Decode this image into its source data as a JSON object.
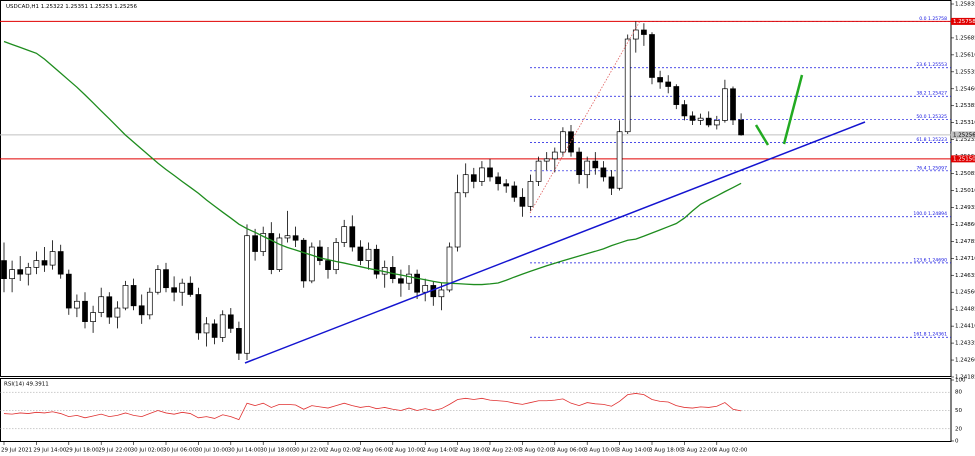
{
  "chart_data": {
    "type": "candlestick",
    "header": {
      "symbol": "USDCAD,H1"
    },
    "categories": [
      "29 Jul 2021",
      null,
      null,
      null,
      "29 Jul 14:00",
      null,
      null,
      null,
      "29 Jul 18:00",
      null,
      null,
      null,
      "29 Jul 22:00",
      null,
      null,
      null,
      "30 Jul 02:00",
      null,
      null,
      null,
      "30 Jul 06:00",
      null,
      null,
      null,
      "30 Jul 10:00",
      null,
      null,
      null,
      "30 Jul 14:00",
      null,
      null,
      null,
      "30 Jul 18:00",
      null,
      null,
      null,
      "30 Jul 22:00",
      null,
      null,
      null,
      "2 Aug 02:00",
      null,
      null,
      null,
      "2 Aug 06:00",
      null,
      null,
      null,
      "2 Aug 10:00",
      null,
      null,
      null,
      "2 Aug 14:00",
      null,
      null,
      null,
      "2 Aug 18:00",
      null,
      null,
      null,
      "2 Aug 22:00",
      null,
      null,
      null,
      "3 Aug 02:00",
      null,
      null,
      null,
      "3 Aug 06:00",
      null,
      null,
      null,
      "3 Aug 10:00",
      null,
      null,
      null,
      "3 Aug 14:00",
      null,
      null,
      null,
      "3 Aug 18:00",
      null,
      null,
      null,
      "3 Aug 22:00",
      null,
      null,
      null,
      "4 Aug 02:00",
      null,
      null,
      null
    ],
    "open": [
      1.247,
      1.2462,
      1.2466,
      1.2464,
      1.2467,
      1.247,
      1.2468,
      1.2474,
      1.2464,
      1.2449,
      1.2452,
      1.2443,
      1.2447,
      1.2454,
      1.2445,
      1.2449,
      1.2459,
      1.245,
      1.2446,
      1.2456,
      1.2466,
      1.2458,
      1.2456,
      1.246,
      1.2455,
      1.2438,
      1.2442,
      1.2436,
      1.2446,
      1.244,
      1.2429,
      1.2481,
      1.2474,
      1.2482,
      1.2466,
      1.248,
      1.2481,
      1.2479,
      1.2461,
      1.2476,
      1.247,
      1.2466,
      1.2478,
      1.2485,
      1.2476,
      1.247,
      1.2475,
      1.2464,
      1.2467,
      1.2462,
      1.246,
      1.2464,
      1.2456,
      1.2459,
      1.2454,
      1.2457,
      1.2476,
      1.25,
      1.2508,
      1.2505,
      1.2511,
      1.2507,
      1.2504,
      1.2503,
      1.2498,
      1.2494,
      1.2505,
      1.2514,
      1.2515,
      1.2518,
      1.2527,
      1.2518,
      1.2508,
      1.2514,
      1.2511,
      1.2507,
      1.2502,
      1.2527,
      1.2568,
      1.2572,
      1.257,
      1.2551,
      1.2549,
      1.2547,
      1.2539,
      1.2534,
      1.2532,
      1.2533,
      1.253,
      1.2532,
      1.2546,
      1.25322
    ],
    "high": [
      1.2478,
      1.247,
      1.2472,
      1.2469,
      1.2474,
      1.2476,
      1.2479,
      1.2477,
      1.2466,
      1.2455,
      1.2456,
      1.245,
      1.2458,
      1.2456,
      1.2452,
      1.2461,
      1.2462,
      1.2455,
      1.2458,
      1.2468,
      1.2469,
      1.2463,
      1.2462,
      1.2463,
      1.2458,
      1.2445,
      1.2444,
      1.2448,
      1.2449,
      1.2443,
      1.2486,
      1.2484,
      1.2485,
      1.2487,
      1.2482,
      1.2492,
      1.2485,
      1.248,
      1.2478,
      1.2479,
      1.2476,
      1.248,
      1.2488,
      1.249,
      1.2479,
      1.2478,
      1.2477,
      1.247,
      1.2472,
      1.2466,
      1.2468,
      1.2466,
      1.2462,
      1.2461,
      1.246,
      1.2478,
      1.2508,
      1.2513,
      1.2511,
      1.2514,
      1.2515,
      1.2509,
      1.2506,
      1.2505,
      1.2502,
      1.2508,
      1.2516,
      1.2518,
      1.252,
      1.2529,
      1.253,
      1.252,
      1.2516,
      1.2518,
      1.2514,
      1.251,
      1.2532,
      1.257,
      1.25758,
      1.2575,
      1.2571,
      1.2554,
      1.2552,
      1.2548,
      1.2541,
      1.2536,
      1.2535,
      1.2536,
      1.2534,
      1.255,
      1.2547,
      1.25351
    ],
    "low": [
      1.2456,
      1.2456,
      1.2461,
      1.2459,
      1.2464,
      1.2465,
      1.2466,
      1.2462,
      1.2446,
      1.2445,
      1.244,
      1.2438,
      1.2445,
      1.2442,
      1.244,
      1.2448,
      1.2448,
      1.2442,
      1.2444,
      1.2455,
      1.2456,
      1.2452,
      1.245,
      1.2454,
      1.2435,
      1.2432,
      1.2433,
      1.2434,
      1.2438,
      1.2426,
      1.2426,
      1.247,
      1.2472,
      1.2464,
      1.2465,
      1.2478,
      1.2476,
      1.2458,
      1.246,
      1.2468,
      1.2462,
      1.2464,
      1.2476,
      1.2474,
      1.2468,
      1.2466,
      1.2462,
      1.2458,
      1.246,
      1.2454,
      1.2457,
      1.2453,
      1.2452,
      1.245,
      1.2448,
      1.2456,
      1.2474,
      1.2498,
      1.2502,
      1.2503,
      1.2505,
      1.2501,
      1.25,
      1.2496,
      1.24894,
      1.2492,
      1.2503,
      1.251,
      1.2509,
      1.2516,
      1.2516,
      1.2504,
      1.2502,
      1.2508,
      1.2505,
      1.2499,
      1.2501,
      1.2526,
      1.2562,
      1.2565,
      1.2548,
      1.2546,
      1.2544,
      1.2537,
      1.2532,
      1.253,
      1.253,
      1.2529,
      1.2528,
      1.2531,
      1.253,
      1.25253
    ],
    "close": [
      1.2462,
      1.2466,
      1.2464,
      1.2467,
      1.247,
      1.2468,
      1.2474,
      1.2464,
      1.2449,
      1.2452,
      1.2443,
      1.2447,
      1.2454,
      1.2445,
      1.2449,
      1.2459,
      1.245,
      1.2446,
      1.2456,
      1.2466,
      1.2458,
      1.2456,
      1.246,
      1.2455,
      1.2438,
      1.2442,
      1.2436,
      1.2446,
      1.244,
      1.2429,
      1.2481,
      1.2474,
      1.2482,
      1.2466,
      1.248,
      1.2481,
      1.2479,
      1.2461,
      1.2476,
      1.247,
      1.2466,
      1.2478,
      1.2485,
      1.2476,
      1.247,
      1.2475,
      1.2464,
      1.2467,
      1.2462,
      1.246,
      1.2464,
      1.2456,
      1.2459,
      1.2454,
      1.2457,
      1.2476,
      1.25,
      1.2508,
      1.2505,
      1.2511,
      1.2507,
      1.2504,
      1.2503,
      1.2498,
      1.2494,
      1.2505,
      1.2514,
      1.2515,
      1.2518,
      1.2527,
      1.2518,
      1.2508,
      1.2514,
      1.2511,
      1.2507,
      1.2502,
      1.2527,
      1.2568,
      1.2572,
      1.257,
      1.2551,
      1.2549,
      1.2547,
      1.2539,
      1.2534,
      1.2532,
      1.2533,
      1.253,
      1.2532,
      1.2546,
      1.25322,
      1.25256
    ],
    "ma": {
      "color": "#1e8c1e",
      "values": [
        1.25669,
        1.25656,
        1.25643,
        1.2563,
        1.25617,
        1.25591,
        1.2556,
        1.25529,
        1.25498,
        1.25467,
        1.25433,
        1.25398,
        1.25362,
        1.25327,
        1.25291,
        1.25255,
        1.25224,
        1.25193,
        1.25162,
        1.25131,
        1.25103,
        1.25077,
        1.2505,
        1.25024,
        1.24998,
        1.24968,
        1.24941,
        1.24914,
        1.24888,
        1.24861,
        1.24841,
        1.24825,
        1.24807,
        1.2479,
        1.24772,
        1.24758,
        1.24747,
        1.24735,
        1.24724,
        1.24712,
        1.24704,
        1.24696,
        1.24689,
        1.24681,
        1.24673,
        1.24665,
        1.24658,
        1.24651,
        1.24643,
        1.24636,
        1.24629,
        1.24622,
        1.24615,
        1.24608,
        1.24602,
        1.246,
        1.24598,
        1.24596,
        1.24594,
        1.24594,
        1.24597,
        1.24601,
        1.24613,
        1.24627,
        1.2464,
        1.24653,
        1.24665,
        1.24677,
        1.24688,
        1.24699,
        1.2471,
        1.2472,
        1.24731,
        1.24741,
        1.24752,
        1.24766,
        1.24778,
        1.2479,
        1.24795,
        1.24808,
        1.24822,
        1.24836,
        1.2485,
        1.24864,
        1.24888,
        1.2492,
        1.24949,
        1.24968,
        1.24986,
        1.25005,
        1.25023,
        1.25042
      ]
    },
    "ylim": [
      1.24185,
      1.25835
    ],
    "yticks": [
      1.25835,
      1.25685,
      {
        "value": 1.2561,
        "label": "1.25610"
      },
      1.25535,
      {
        "value": 1.2546,
        "label": "1.25460"
      },
      1.25385,
      {
        "value": 1.2531,
        "label": "1.25310"
      },
      1.25235,
      {
        "value": 1.2516,
        "label": "1.25160"
      },
      1.25085,
      {
        "value": 1.2501,
        "label": "1.25010"
      },
      1.24935,
      {
        "value": 1.2486,
        "label": "1.24860"
      },
      1.24785,
      {
        "value": 1.2471,
        "label": "1.24710"
      },
      1.24635,
      {
        "value": 1.2456,
        "label": "1.24560"
      },
      1.24485,
      {
        "value": 1.2441,
        "label": "1.24410"
      },
      1.24335,
      {
        "value": 1.2426,
        "label": "1.24260"
      },
      1.24185
    ],
    "hlines": [
      {
        "value": 1.25758,
        "label": "1.25758",
        "color": "#e00000"
      },
      {
        "value": 1.2515,
        "label": "1.25150",
        "color": "#e00000"
      },
      {
        "value": 1.25256,
        "label": "1.25256",
        "color": "#c0c0c0"
      }
    ],
    "fib": {
      "color": "#1010e0",
      "levels": [
        {
          "value": 1.25758,
          "label": "0.0 1.25758"
        },
        {
          "value": 1.25553,
          "label": "23.6 1.25553"
        },
        {
          "value": 1.25427,
          "label": "38.2 1.25427"
        },
        {
          "value": 1.25325,
          "label": "50.0 1.25325"
        },
        {
          "value": 1.25223,
          "label": "61.8 1.25223"
        },
        {
          "value": 1.25097,
          "label": "76.4 1.25097"
        },
        {
          "value": 1.24894,
          "label": "100.0 1.24894"
        },
        {
          "value": 1.2469,
          "label": "123.6 1.24690"
        },
        {
          "value": 1.24361,
          "label": "161.8 1.24361"
        }
      ]
    },
    "rsi": {
      "title": "RSI(14) 49.3911",
      "color": "#e03030",
      "ylim": [
        0,
        100
      ],
      "yticks": [
        100,
        80,
        50,
        20,
        0
      ],
      "values": [
        45,
        44,
        46,
        45,
        47,
        46,
        48,
        45,
        40,
        42,
        38,
        41,
        44,
        40,
        42,
        46,
        42,
        40,
        45,
        50,
        46,
        44,
        47,
        45,
        38,
        40,
        37,
        43,
        40,
        35,
        62,
        58,
        62,
        55,
        60,
        60,
        59,
        52,
        58,
        56,
        54,
        58,
        62,
        58,
        55,
        57,
        53,
        55,
        52,
        50,
        54,
        50,
        53,
        50,
        53,
        60,
        68,
        70,
        68,
        70,
        67,
        66,
        65,
        62,
        60,
        63,
        66,
        66,
        67,
        69,
        62,
        58,
        63,
        61,
        60,
        57,
        65,
        76,
        78,
        76,
        68,
        65,
        64,
        58,
        55,
        54,
        56,
        55,
        57,
        63,
        52,
        49.3911
      ]
    }
  }
}
